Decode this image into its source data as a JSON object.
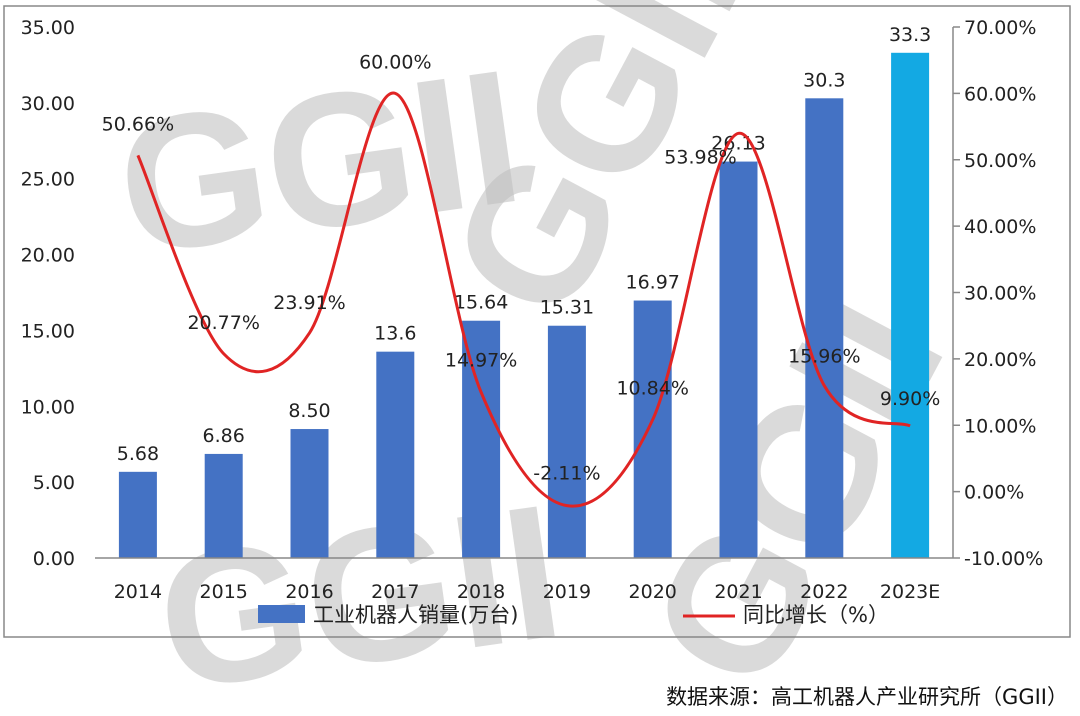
{
  "chart_data": {
    "type": "bar+line",
    "categories": [
      "2014",
      "2015",
      "2016",
      "2017",
      "2018",
      "2019",
      "2020",
      "2021",
      "2022",
      "2023E"
    ],
    "series": [
      {
        "name": "工业机器人销量(万台)",
        "type": "bar",
        "axis": "left",
        "values": [
          5.68,
          6.86,
          8.5,
          13.6,
          15.64,
          15.31,
          16.97,
          26.13,
          30.3,
          33.3
        ],
        "labels": [
          "5.68",
          "6.86",
          "8.50",
          "13.6",
          "15.64",
          "15.31",
          "16.97",
          "26.13",
          "30.3",
          "33.3"
        ],
        "color": "#4472C4",
        "highlight_last_color": "#13A9E3"
      },
      {
        "name": "同比增长（%）",
        "type": "line",
        "smooth": true,
        "axis": "right",
        "values": [
          50.66,
          20.77,
          23.91,
          60.0,
          14.97,
          -2.11,
          10.84,
          53.98,
          15.96,
          9.9
        ],
        "labels": [
          "50.66%",
          "20.77%",
          "23.91%",
          "60.00%",
          "14.97%",
          "-2.11%",
          "10.84%",
          "53.98%",
          "15.96%",
          "9.90%"
        ],
        "color": "#E02424"
      }
    ],
    "left_axis": {
      "ylim": [
        0,
        35
      ],
      "ticks": [
        "0.00",
        "5.00",
        "10.00",
        "15.00",
        "20.00",
        "25.00",
        "30.00",
        "35.00"
      ]
    },
    "right_axis": {
      "ylim": [
        -10,
        70
      ],
      "ticks": [
        "-10.00%",
        "0.00%",
        "10.00%",
        "20.00%",
        "30.00%",
        "40.00%",
        "50.00%",
        "60.00%",
        "70.00%"
      ]
    },
    "grid": false,
    "legend": "bottom",
    "source": "数据来源：高工机器人产业研究所（GGII）"
  },
  "watermark": "GGII"
}
